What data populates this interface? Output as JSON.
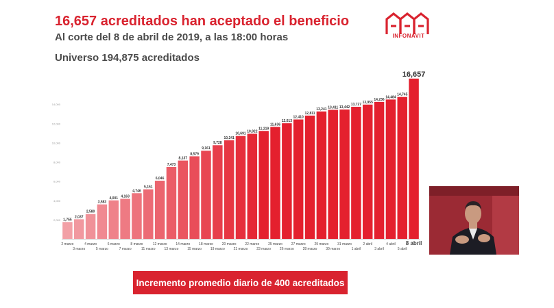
{
  "header": {
    "title": "16,657 acreditados han aceptado el beneficio",
    "subtitle": "Al corte del 8 de abril de 2019, a las 18:00 horas",
    "universe": "Universo 194,875 acreditados"
  },
  "logo": {
    "text": "INFONAVIT",
    "color": "#d9232f"
  },
  "banner": {
    "text": "Incremento promedio diario de 400 acreditados"
  },
  "colors": {
    "accent": "#d9232f",
    "bar_light": "#f2a0a6",
    "bar_dark": "#e4202e"
  },
  "chart_data": {
    "type": "bar",
    "categories": [
      "2 marzo",
      "3 marzo",
      "4 marzo",
      "5 marzo",
      "6 marzo",
      "7 marzo",
      "8 marzo",
      "11 marzo",
      "12 marzo",
      "13 marzo",
      "14 marzo",
      "15 marzo",
      "18 marzo",
      "19 marzo",
      "20 marzo",
      "21 marzo",
      "22 marzo",
      "23 marzo",
      "25 marzo",
      "26 marzo",
      "27 marzo",
      "28 marzo",
      "29 marzo",
      "30 marzo",
      "31 marzo",
      "1 abril",
      "2 abril",
      "3 abril",
      "4 abril",
      "5 abril",
      "8 abril"
    ],
    "values": [
      1755,
      2037,
      2580,
      3583,
      4001,
      4163,
      4746,
      5151,
      6046,
      7473,
      8137,
      8579,
      9161,
      9728,
      10241,
      10691,
      10922,
      11219,
      11636,
      12013,
      12410,
      12811,
      13241,
      13411,
      13442,
      13727,
      13955,
      14236,
      14484,
      14745,
      16657
    ],
    "value_labels": [
      "1,755",
      "2,037",
      "2,580",
      "3,583",
      "4,001",
      "4,163",
      "4,746",
      "5,151",
      "6,046",
      "7,473",
      "8,137",
      "8,579",
      "9,161",
      "9,728",
      "10,241",
      "10,691",
      "10,922",
      "11,219",
      "11,636",
      "12,013",
      "12,410",
      "12,811",
      "13,241",
      "13,411",
      "13,442",
      "13,727",
      "13,955",
      "14,236",
      "14,484",
      "14,745",
      "16,657"
    ],
    "yticks": [
      2000,
      4000,
      6000,
      8000,
      10000,
      12000,
      14000
    ],
    "ytick_labels": [
      "2,000",
      "4,000",
      "6,000",
      "8,000",
      "10,000",
      "12,000",
      "14,000"
    ],
    "ylim": [
      0,
      17000
    ],
    "title": "",
    "xlabel": "",
    "ylabel": "",
    "grid": false
  }
}
